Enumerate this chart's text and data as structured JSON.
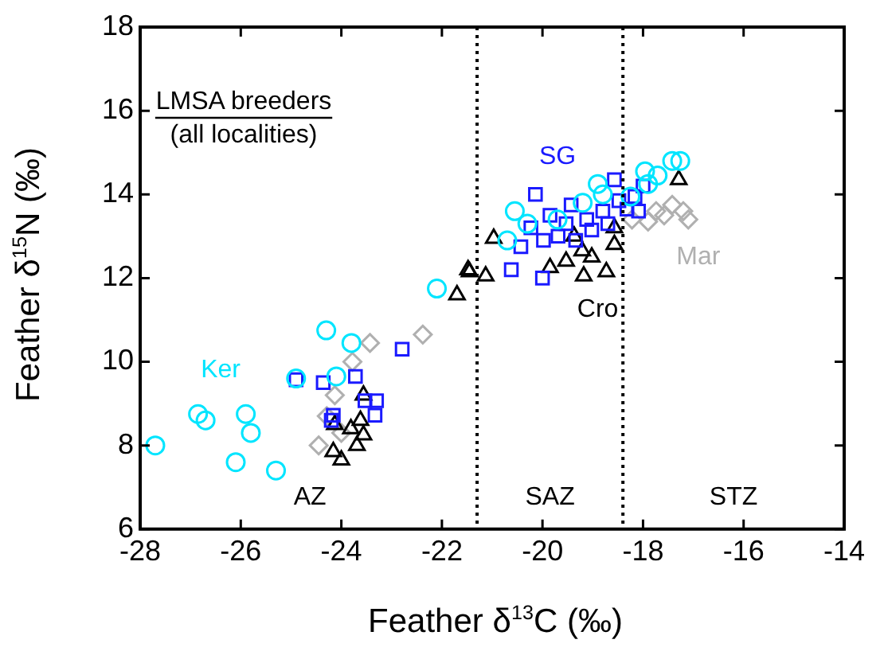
{
  "chart_data": {
    "type": "scatter",
    "xlabel": "Feather δ$^{13}$C (‰)",
    "ylabel": "Feather δ$^{15}$N (‰)",
    "xlim": [
      -28,
      -14
    ],
    "xticks": [
      -28,
      -26,
      -24,
      -22,
      -20,
      -18,
      -16,
      -14
    ],
    "ylim": [
      6,
      18
    ],
    "yticks": [
      6,
      8,
      10,
      12,
      14,
      16,
      18
    ],
    "grid": false,
    "legend": false,
    "ref_lines": [
      {
        "axis": "x",
        "value": -21.3,
        "line_style": "dotted",
        "color": "#000000"
      },
      {
        "axis": "x",
        "value": -18.4,
        "line_style": "dotted",
        "color": "#000000"
      }
    ],
    "annotations": [
      "LMSA breeders",
      "(all localities)",
      "AZ",
      "SAZ",
      "STZ"
    ],
    "series": [
      {
        "name": "Ker",
        "color": "#00e5ff",
        "marker": "circle",
        "x": [
          -27.7,
          -26.85,
          -26.7,
          -25.9,
          -25.8,
          -26.1,
          -25.3,
          -24.3,
          -23.8,
          -24.1,
          -24.9,
          -22.1,
          -20.55,
          -20.7,
          -18.9,
          -18.8,
          -17.96,
          -17.71,
          -17.9,
          -18.25,
          -17.42,
          -17.26,
          -20.3,
          -19.7,
          -19.2
        ],
        "values": [
          8.0,
          8.75,
          8.6,
          8.75,
          8.3,
          7.6,
          7.4,
          10.75,
          10.45,
          9.65,
          9.6,
          11.75,
          13.6,
          12.9,
          14.25,
          14.0,
          14.55,
          14.45,
          14.25,
          13.95,
          14.8,
          14.8,
          13.3,
          13.4,
          13.8
        ]
      },
      {
        "name": "SG",
        "color": "#1a1aff",
        "marker": "square",
        "x": [
          -24.9,
          -24.36,
          -23.72,
          -23.53,
          -23.3,
          -23.33,
          -24.16,
          -24.2,
          -22.79,
          -20.14,
          -18.57,
          -18.0,
          -20.62,
          -20.0,
          -20.43,
          -20.23,
          -19.85,
          -19.43,
          -19.12,
          -18.8,
          -18.48,
          -18.32,
          -18.16,
          -18.09,
          -19.69,
          -19.34,
          -19.02,
          -19.98,
          -18.7,
          -19.53
        ],
        "values": [
          9.57,
          9.5,
          9.65,
          9.07,
          9.07,
          8.72,
          8.72,
          8.6,
          10.3,
          14.0,
          14.35,
          14.2,
          12.2,
          12.0,
          12.75,
          13.2,
          13.5,
          13.75,
          13.4,
          13.6,
          13.85,
          13.65,
          13.95,
          13.6,
          13.0,
          12.9,
          13.15,
          12.9,
          13.3,
          13.3
        ]
      },
      {
        "name": "Cro",
        "color": "#000000",
        "marker": "triangle",
        "x": [
          -23.56,
          -24.13,
          -23.81,
          -23.62,
          -23.56,
          -23.69,
          -24.16,
          -24.0,
          -21.7,
          -21.45,
          -20.97,
          -21.48,
          -21.13,
          -19.85,
          -19.18,
          -18.73,
          -18.57,
          -18.57,
          -19.21,
          -19.37,
          -17.29,
          -19.53,
          -19.02
        ],
        "values": [
          9.2,
          8.5,
          8.4,
          8.6,
          8.25,
          8.0,
          7.85,
          7.65,
          11.6,
          12.15,
          12.95,
          12.2,
          12.05,
          12.25,
          12.05,
          12.15,
          12.8,
          13.2,
          12.65,
          13.0,
          14.35,
          12.4,
          12.5
        ]
      },
      {
        "name": "Mar",
        "color": "#b0b0b0",
        "marker": "diamond",
        "x": [
          -23.43,
          -22.38,
          -23.78,
          -24.13,
          -24.29,
          -24.45,
          -24.0,
          -17.9,
          -17.58,
          -17.42,
          -17.1,
          -17.2,
          -18.22,
          -17.74
        ],
        "values": [
          10.45,
          10.65,
          10.0,
          9.2,
          8.7,
          8.0,
          8.3,
          13.35,
          13.5,
          13.75,
          13.4,
          13.6,
          13.4,
          13.6
        ]
      }
    ]
  }
}
